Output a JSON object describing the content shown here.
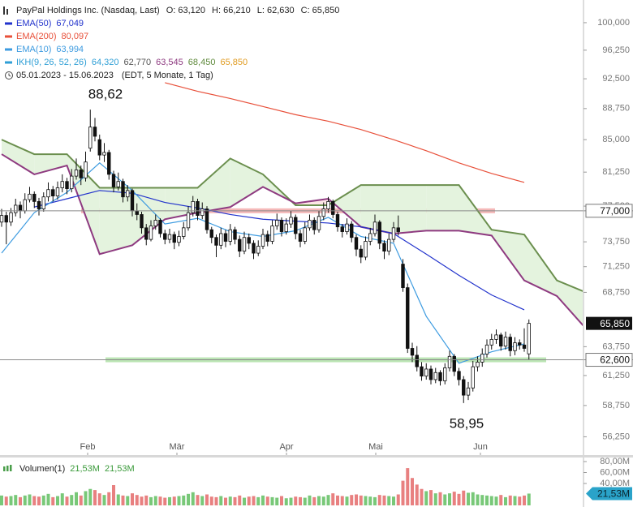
{
  "chart_data": {
    "type": "candlestick",
    "title": "PayPal Holdings Inc. (Nasdaq, Last)",
    "quote": [
      "O: 63,120",
      "H: 66,210",
      "L: 62,630",
      "C: 65,850"
    ],
    "range": "05.01.2023 - 15.06.2023",
    "range_note": "(EDT, 5 Monate, 1 Tag)",
    "log_scale": true,
    "ylim": [
      54.9,
      103.2
    ],
    "yticks": [
      {
        "value": 100,
        "label": "100,000"
      },
      {
        "value": 96.25,
        "label": "96,250"
      },
      {
        "value": 92.5,
        "label": "92,500"
      },
      {
        "value": 88.75,
        "label": "88,750"
      },
      {
        "value": 85,
        "label": "85,000"
      },
      {
        "value": 81.25,
        "label": "81,250"
      },
      {
        "value": 77.5,
        "label": "77,500"
      },
      {
        "value": 73.75,
        "label": "73,750"
      },
      {
        "value": 71.25,
        "label": "71,250"
      },
      {
        "value": 68.75,
        "label": "68,750"
      },
      {
        "value": 63.75,
        "label": "63,750"
      },
      {
        "value": 61.25,
        "label": "61,250"
      },
      {
        "value": 58.75,
        "label": "58,750"
      },
      {
        "value": 56.25,
        "label": "56,250"
      }
    ],
    "months": [
      "Feb",
      "Mär",
      "Apr",
      "Mai",
      "Jun"
    ],
    "ohlc": [
      [
        75.8,
        77.2,
        75.3,
        76.5
      ],
      [
        76.5,
        76.9,
        73.5,
        75.8
      ],
      [
        75.8,
        77.3,
        75.4,
        76.8
      ],
      [
        76.8,
        78.3,
        76.4,
        77.6
      ],
      [
        77.6,
        78.0,
        76.2,
        77.0
      ],
      [
        77.0,
        78.9,
        76.7,
        78.2
      ],
      [
        78.2,
        79.6,
        77.9,
        78.8
      ],
      [
        78.8,
        79.1,
        77.3,
        78.0
      ],
      [
        78.0,
        78.4,
        76.5,
        77.2
      ],
      [
        77.2,
        79.0,
        76.9,
        78.5
      ],
      [
        78.5,
        80.1,
        78.0,
        79.3
      ],
      [
        79.3,
        79.7,
        78.0,
        78.6
      ],
      [
        78.6,
        80.2,
        78.2,
        79.5
      ],
      [
        79.5,
        81.0,
        79.0,
        80.2
      ],
      [
        80.2,
        80.6,
        78.8,
        79.4
      ],
      [
        79.4,
        81.6,
        79.0,
        80.8
      ],
      [
        80.8,
        82.8,
        80.4,
        81.5
      ],
      [
        81.5,
        82.0,
        79.8,
        80.6
      ],
      [
        80.6,
        83.6,
        80.2,
        82.4
      ],
      [
        84.0,
        88.62,
        83.6,
        86.5
      ],
      [
        86.5,
        87.6,
        84.8,
        85.4
      ],
      [
        85.0,
        85.6,
        82.6,
        83.2
      ],
      [
        83.2,
        84.6,
        82.4,
        83.5
      ],
      [
        83.5,
        83.8,
        80.4,
        81.0
      ],
      [
        81.0,
        81.4,
        79.0,
        79.6
      ],
      [
        79.6,
        81.2,
        79.2,
        80.2
      ],
      [
        80.2,
        80.5,
        77.9,
        78.5
      ],
      [
        78.5,
        79.8,
        78.0,
        79.2
      ],
      [
        79.2,
        79.4,
        76.4,
        77.0
      ],
      [
        77.0,
        77.8,
        76.0,
        76.6
      ],
      [
        76.6,
        76.9,
        74.6,
        75.2
      ],
      [
        75.2,
        75.6,
        73.4,
        74.0
      ],
      [
        74.0,
        76.0,
        73.8,
        75.4
      ],
      [
        75.4,
        76.6,
        75.0,
        76.0
      ],
      [
        76.0,
        76.2,
        74.2,
        74.6
      ],
      [
        74.6,
        75.0,
        73.5,
        74.0
      ],
      [
        74.0,
        75.1,
        73.6,
        74.5
      ],
      [
        74.5,
        74.8,
        73.0,
        73.7
      ],
      [
        73.7,
        74.9,
        73.3,
        74.3
      ],
      [
        74.3,
        75.8,
        74.0,
        75.2
      ],
      [
        75.2,
        77.5,
        74.9,
        76.8
      ],
      [
        76.8,
        78.6,
        76.4,
        78.0
      ],
      [
        78.0,
        78.3,
        76.0,
        76.5
      ],
      [
        76.5,
        77.9,
        76.1,
        77.2
      ],
      [
        77.2,
        77.5,
        74.6,
        75.0
      ],
      [
        75.0,
        75.3,
        73.6,
        74.2
      ],
      [
        74.2,
        74.5,
        72.2,
        73.4
      ],
      [
        73.4,
        75.2,
        73.0,
        74.6
      ],
      [
        74.6,
        75.0,
        73.2,
        73.8
      ],
      [
        73.8,
        75.6,
        73.4,
        75.0
      ],
      [
        75.0,
        75.3,
        73.5,
        74.0
      ],
      [
        74.0,
        74.4,
        72.2,
        72.8
      ],
      [
        72.8,
        74.8,
        72.5,
        74.2
      ],
      [
        74.2,
        74.6,
        73.0,
        73.6
      ],
      [
        73.6,
        73.9,
        72.0,
        72.6
      ],
      [
        72.6,
        73.9,
        72.3,
        73.3
      ],
      [
        73.3,
        75.1,
        73.0,
        74.5
      ],
      [
        74.5,
        74.9,
        73.3,
        73.8
      ],
      [
        73.8,
        76.0,
        73.5,
        75.4
      ],
      [
        75.4,
        76.7,
        75.0,
        76.0
      ],
      [
        76.0,
        76.3,
        74.3,
        74.8
      ],
      [
        74.8,
        76.2,
        74.5,
        75.6
      ],
      [
        75.6,
        77.0,
        75.2,
        76.3
      ],
      [
        76.3,
        76.6,
        74.0,
        74.6
      ],
      [
        74.6,
        75.0,
        73.2,
        73.8
      ],
      [
        73.8,
        75.8,
        73.5,
        75.2
      ],
      [
        75.2,
        76.6,
        74.9,
        76.0
      ],
      [
        76.0,
        76.3,
        74.5,
        75.0
      ],
      [
        75.0,
        77.0,
        74.7,
        76.4
      ],
      [
        76.4,
        77.9,
        76.0,
        77.2
      ],
      [
        77.2,
        78.5,
        76.8,
        78.0
      ],
      [
        78.0,
        78.2,
        76.2,
        76.6
      ],
      [
        76.6,
        76.9,
        74.8,
        75.3
      ],
      [
        75.3,
        75.6,
        74.2,
        74.8
      ],
      [
        74.8,
        76.2,
        74.5,
        75.6
      ],
      [
        75.6,
        75.9,
        73.7,
        74.2
      ],
      [
        74.2,
        74.5,
        72.3,
        73.0
      ],
      [
        73.0,
        73.4,
        71.6,
        72.2
      ],
      [
        72.2,
        74.3,
        71.9,
        73.8
      ],
      [
        73.8,
        75.2,
        73.4,
        74.6
      ],
      [
        74.6,
        76.6,
        74.3,
        75.8
      ],
      [
        75.8,
        76.0,
        73.0,
        73.6
      ],
      [
        73.6,
        73.9,
        72.0,
        72.8
      ],
      [
        72.8,
        74.6,
        72.4,
        74.0
      ],
      [
        74.0,
        75.8,
        73.7,
        75.2
      ],
      [
        75.2,
        76.5,
        74.4,
        74.8
      ],
      [
        71.5,
        72.0,
        68.8,
        69.2
      ],
      [
        69.2,
        69.6,
        63.2,
        63.6
      ],
      [
        63.6,
        64.1,
        62.4,
        63.0
      ],
      [
        63.0,
        63.8,
        61.6,
        62.0
      ],
      [
        62.0,
        62.4,
        60.8,
        61.2
      ],
      [
        61.2,
        62.3,
        60.9,
        61.8
      ],
      [
        61.8,
        62.1,
        60.5,
        60.9
      ],
      [
        60.9,
        61.9,
        60.6,
        61.5
      ],
      [
        61.5,
        61.7,
        60.4,
        60.8
      ],
      [
        60.8,
        62.3,
        60.5,
        61.9
      ],
      [
        61.9,
        63.4,
        61.6,
        62.9
      ],
      [
        62.9,
        63.1,
        61.2,
        61.6
      ],
      [
        61.6,
        61.9,
        60.4,
        60.9
      ],
      [
        60.9,
        61.2,
        58.95,
        59.6
      ],
      [
        59.6,
        60.7,
        59.2,
        60.2
      ],
      [
        60.2,
        62.5,
        59.9,
        62.0
      ],
      [
        62.0,
        62.9,
        61.6,
        62.4
      ],
      [
        62.4,
        63.6,
        62.0,
        63.1
      ],
      [
        63.1,
        64.4,
        62.8,
        63.9
      ],
      [
        63.9,
        64.9,
        63.5,
        64.4
      ],
      [
        64.4,
        65.3,
        64.0,
        64.8
      ],
      [
        64.8,
        65.0,
        63.4,
        63.8
      ],
      [
        63.8,
        65.1,
        63.5,
        64.6
      ],
      [
        64.6,
        64.9,
        62.9,
        63.4
      ],
      [
        63.4,
        64.6,
        63.0,
        64.1
      ],
      [
        64.1,
        64.4,
        63.5,
        63.9
      ],
      [
        63.9,
        65.4,
        63.3,
        63.6
      ],
      [
        63.12,
        66.21,
        62.63,
        65.85
      ]
    ],
    "last_label": "65,850",
    "series": [
      {
        "name": "EMA(50)",
        "value_label": "67,049",
        "color": "#2233cc",
        "values": [
          null,
          77.4,
          78.3,
          79.2,
          78.9,
          77.9,
          77.3,
          76.6,
          76.1,
          75.9,
          75.7,
          75.3,
          74.6,
          72.5,
          70.4,
          68.5,
          67.1
        ]
      },
      {
        "name": "EMA(200)",
        "value_label": "80,097",
        "color": "#e8503a",
        "values": [
          null,
          null,
          null,
          null,
          null,
          92.0,
          90.9,
          90.0,
          89.0,
          88.0,
          87.2,
          86.2,
          85.0,
          83.7,
          82.3,
          81.1,
          80.1
        ]
      },
      {
        "name": "EMA(10)",
        "value_label": "63,994",
        "color": "#3d9be0",
        "values": [
          72.6,
          76.8,
          79.0,
          82.3,
          79.2,
          75.6,
          76.2,
          74.8,
          74.3,
          74.9,
          76.3,
          74.3,
          73.6,
          66.5,
          62.3,
          63.3,
          64.0
        ]
      }
    ],
    "ikh": {
      "name": "IKH(9, 26, 52, 26)",
      "color": "#2f9fd6",
      "value_labels": [
        "64,320",
        "62,770",
        "63,545",
        "68,450",
        "65,850"
      ],
      "value_colors": [
        "#2f9fd6",
        "#555555",
        "#8e3a80",
        "#5f8a3c",
        "#e09b20"
      ],
      "span_a": {
        "color": "#6b8f4e",
        "fill": "#e4f3de",
        "values": [
          85.0,
          83.3,
          83.3,
          79.5,
          79.5,
          79.5,
          79.5,
          82.8,
          81.0,
          77.6,
          77.6,
          79.8,
          79.8,
          79.8,
          79.8,
          75.0,
          74.5,
          69.9,
          68.6
        ]
      },
      "span_b": {
        "color": "#8e3a80",
        "fill": "#fde6e6",
        "values": [
          83.3,
          81.0,
          82.0,
          72.5,
          73.4,
          76.1,
          76.8,
          77.4,
          79.6,
          77.8,
          78.3,
          75.3,
          74.6,
          74.9,
          74.9,
          74.4,
          69.9,
          68.4,
          65.0
        ]
      }
    },
    "levels": [
      {
        "value": 77,
        "label": "77,000",
        "color": "#f0a0a0"
      },
      {
        "value": 62.6,
        "label": "62,600",
        "color": "#a6dc9c"
      }
    ],
    "annotations": [
      {
        "text": "88,62",
        "value": 88.62
      },
      {
        "text": "58,95",
        "value": 58.95
      }
    ],
    "volume": {
      "name": "Volumen(1)",
      "legend_values": [
        "21,53M",
        "21,53M"
      ],
      "value_label": "21,53M",
      "up_color": "#78c878",
      "down_color": "#e88080",
      "ylim": [
        0,
        85.9
      ],
      "yticks": [
        {
          "value": 80,
          "label": "80,00M"
        },
        {
          "value": 60,
          "label": "60,00M"
        },
        {
          "value": 40,
          "label": "40,00M"
        }
      ],
      "values": [
        18,
        16,
        17,
        19,
        15,
        18,
        20,
        17,
        16,
        18,
        21,
        15,
        17,
        22,
        16,
        19,
        24,
        18,
        26,
        30,
        28,
        22,
        19,
        24,
        37,
        20,
        18,
        17,
        22,
        19,
        16,
        18,
        15,
        17,
        16,
        14,
        15,
        16,
        17,
        18,
        21,
        24,
        19,
        17,
        20,
        16,
        15,
        17,
        14,
        16,
        15,
        18,
        14,
        16,
        17,
        15,
        18,
        16,
        15,
        14,
        17,
        13,
        14,
        16,
        15,
        14,
        18,
        15,
        17,
        16,
        19,
        22,
        18,
        17,
        16,
        19,
        20,
        18,
        17,
        16,
        15,
        19,
        18,
        17,
        16,
        20,
        45,
        68,
        50,
        38,
        30,
        26,
        28,
        22,
        24,
        20,
        22,
        25,
        21,
        27,
        23,
        24,
        20,
        19,
        18,
        17,
        16,
        19,
        15,
        18,
        17,
        16,
        18,
        21.53
      ]
    }
  }
}
